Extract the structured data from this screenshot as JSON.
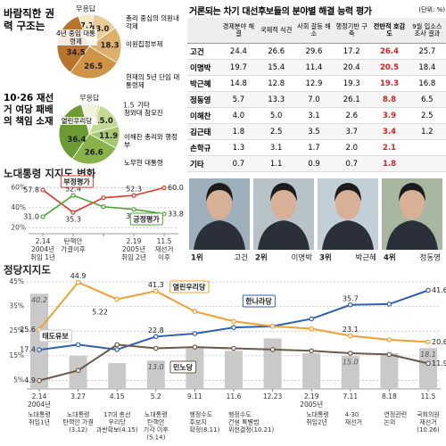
{
  "chart_data": [
    {
      "type": "pie",
      "title": "바람직한 권력 구조는",
      "categories": [
        "무응답",
        "총리 중심의 의원내각제",
        "이원집정부제",
        "현재의 5년 단임 대통령제",
        "4년 중임 대통령제"
      ],
      "values": [
        7.7,
        13.0,
        18.3,
        26.5,
        34.5
      ],
      "value_labels": [
        "7.7",
        "13.0",
        "18.3",
        "26.5",
        "34.5"
      ],
      "colors": [
        "#f4e6c8",
        "#ebcc98",
        "#dfb06c",
        "#cf9446",
        "#b8742c"
      ]
    },
    {
      "type": "pie",
      "title": "10·26 재선거 여당 패배의 책임 소재",
      "categories": [
        "무응답",
        "기타",
        "청와대 참모진",
        "이해찬 총리와 행정부",
        "노무현 대통령",
        "열린우리당"
      ],
      "values": [
        8.6,
        1.5,
        15.0,
        11.9,
        26.6,
        36.4
      ],
      "value_labels": [
        null,
        "1.5",
        "15.0",
        "11.9",
        "26.6",
        "36.4"
      ],
      "colors": [
        "#eef3dc",
        "#dbe9b8",
        "#c2da92",
        "#a6c86e",
        "#89b24d",
        "#6c9b36"
      ]
    },
    {
      "type": "line",
      "title": "노대통령 지지도 변화",
      "categories": [
        "2.14",
        "탄핵안",
        null,
        "2.19",
        "11.5"
      ],
      "category_sublabels": [
        [
          "2004년",
          "취임 1년"
        ],
        [
          "가결이후"
        ],
        null,
        [
          "2005년",
          "취임 2년"
        ],
        [
          "재선거",
          "이후"
        ]
      ],
      "series": [
        {
          "name": "부정평가",
          "color": "#e0382b",
          "values": [
            57.8,
            35.3,
            50,
            52.3,
            60.0
          ],
          "value_labels": [
            "57.8",
            "35.3",
            null,
            "52.3",
            "60.0"
          ]
        },
        {
          "name": "긍정평가",
          "color": "#4aa832",
          "values": [
            31.0,
            52.4,
            41,
            38.4,
            33.8
          ],
          "value_labels": [
            "31.0",
            "52.4",
            null,
            "38.4",
            "33.8"
          ]
        }
      ],
      "ylim": [
        14,
        64
      ],
      "yticks": [
        {
          "value": 60,
          "label": "60%"
        },
        {
          "value": 40,
          "label": "40%"
        },
        {
          "value": 20,
          "label": "20%"
        }
      ],
      "grid": true
    },
    {
      "type": "combo",
      "title": "정당지지도",
      "categories": [
        "2.14",
        "3.27",
        "4.15",
        "5.2",
        "9.11",
        "11.6",
        "12.23",
        "2.19",
        "7.11",
        "8.18",
        "11.5"
      ],
      "category_sublabels": [
        [
          "2004년"
        ],
        null,
        null,
        null,
        null,
        null,
        null,
        [
          "2005년"
        ],
        null,
        null,
        null
      ],
      "annotations": [
        [
          "노대통령",
          "취임1년"
        ],
        [
          "노대통령",
          "탄핵안 가결",
          "(3.12)"
        ],
        [
          "17대 총선",
          "우리당",
          "과반확보(4.15)"
        ],
        [
          "노대통령",
          "탄핵안",
          "기각 이후",
          "(5.14)"
        ],
        [
          "행정수도",
          "후보지",
          "확정(8.11)"
        ],
        [
          "행정수도",
          "건설 특별법",
          "위헌결정(10.21)"
        ],
        null,
        [
          "노대통령",
          "취임2년"
        ],
        [
          "4·30",
          "재선거"
        ],
        [
          "연정관련",
          "논의"
        ],
        [
          "국회의원",
          "재선거",
          "(10.26)"
        ]
      ],
      "notes": [
        "5.22"
      ],
      "series": [
        {
          "name": "태도유보",
          "type": "bar",
          "color": "#c9c9c9",
          "values": [
            40.2,
            15,
            12,
            13.0,
            18,
            17,
            22,
            16,
            15.0,
            16,
            18.1
          ],
          "value_labels": [
            "40.2",
            null,
            null,
            "13.0",
            null,
            null,
            null,
            null,
            "15.0",
            null,
            "18.1"
          ]
        },
        {
          "name": "한나라당",
          "type": "line",
          "color": "#2f5fb0",
          "values": [
            17.4,
            19.5,
            17.5,
            22.8,
            24,
            26.5,
            27,
            30,
            35.7,
            36,
            41.6
          ],
          "value_labels": [
            "17.4",
            null,
            null,
            "22.8",
            null,
            null,
            null,
            null,
            "35.7",
            null,
            "41.6"
          ]
        },
        {
          "name": "열린우리당",
          "type": "line",
          "color": "#f0a030",
          "values": [
            25.6,
            44.9,
            38,
            41.3,
            33,
            29,
            27,
            26,
            23.1,
            21.5,
            20.6
          ],
          "value_labels": [
            "25.6",
            "44.9",
            null,
            "41.3",
            null,
            null,
            null,
            null,
            "23.1",
            null,
            "20.6"
          ]
        },
        {
          "name": "민노당",
          "type": "line",
          "color": "#6b5a4a",
          "values": [
            4.9,
            9,
            19.5,
            18,
            18.5,
            18,
            17.5,
            17,
            16,
            15.5,
            11.9
          ],
          "value_labels": [
            "4.9",
            null,
            null,
            null,
            null,
            null,
            null,
            null,
            null,
            null,
            "11.9"
          ]
        }
      ],
      "ylim": [
        1.5,
        46.5
      ],
      "yticks": [
        {
          "value": 45,
          "label": "45%"
        },
        {
          "value": 35,
          "label": "35%"
        },
        {
          "value": 25,
          "label": "25%"
        },
        {
          "value": 15,
          "label": "15%"
        },
        {
          "value": 5,
          "label": "5%"
        }
      ],
      "grid": true
    }
  ],
  "table": {
    "title": "거론되는 차기 대선후보들의 분야별 해결 능력 평가",
    "unit": "(단위: %)",
    "columns": [
      "경제분야 해결",
      "국제적 식견",
      "사회 갈등 해소",
      "행정기반 구축",
      "전반적 호감도",
      "9월 입소스 조사 결과"
    ],
    "rows": [
      [
        "고건",
        "24.4",
        "26.6",
        "29.6",
        "17.2",
        "26.4",
        "25.7"
      ],
      [
        "이명박",
        "19.7",
        "15.4",
        "11.4",
        "20.4",
        "20.5",
        "18.4"
      ],
      [
        "박근혜",
        "14.8",
        "12.8",
        "12.9",
        "19.3",
        "19.3",
        "16.8"
      ],
      [
        "정동영",
        "5.7",
        "13.3",
        "7.0",
        "26.1",
        "8.8",
        "6.5"
      ],
      [
        "이해찬",
        "4.0",
        "5.0",
        "3.1",
        "2.6",
        "3.9",
        "2.5"
      ],
      [
        "김근태",
        "1.8",
        "2.5",
        "3.5",
        "3.7",
        "3.4",
        "1.2"
      ],
      [
        "손학규",
        "1.3",
        "3.1",
        "1.7",
        "2.0",
        "2.1",
        null
      ],
      [
        "기타",
        "0.7",
        "1.1",
        "0.9",
        "0.7",
        "1.8",
        null
      ]
    ]
  },
  "photos": [
    {
      "rank": "1위",
      "name": "고건"
    },
    {
      "rank": "2위",
      "name": "이명박"
    },
    {
      "rank": "3위",
      "name": "박근혜"
    },
    {
      "rank": "4위",
      "name": "정동영"
    }
  ]
}
